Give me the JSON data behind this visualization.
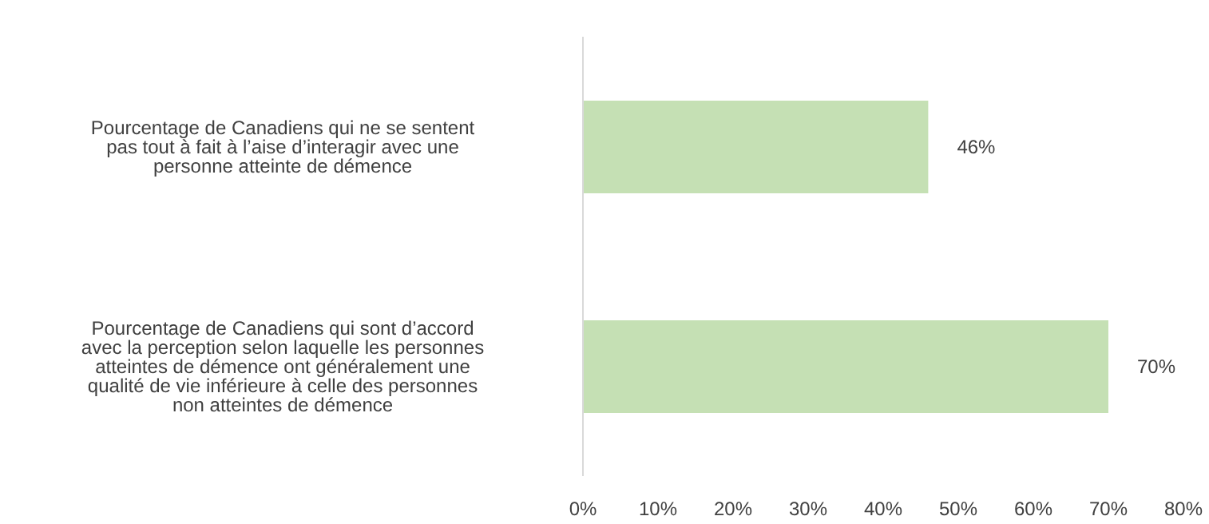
{
  "chart_data": {
    "type": "bar",
    "orientation": "horizontal",
    "categories": [
      "Pourcentage de Canadiens qui ne se sentent pas tout à fait à l’aise d’interagir avec une personne atteinte de démence",
      "Pourcentage de Canadiens qui sont d’accord avec la perception selon laquelle les personnes atteintes de démence ont généralement une qualité de vie inférieure à celle des personnes non atteintes de démence"
    ],
    "values": [
      46,
      70
    ],
    "color": "#c5e0b4",
    "value_labels": [
      "46%",
      "70%"
    ],
    "xlim": [
      0,
      80
    ],
    "xticks": [
      {
        "value": 0,
        "label": "0%"
      },
      {
        "value": 10,
        "label": "10%"
      },
      {
        "value": 20,
        "label": "20%"
      },
      {
        "value": 30,
        "label": "30%"
      },
      {
        "value": 40,
        "label": "40%"
      },
      {
        "value": 50,
        "label": "50%"
      },
      {
        "value": 60,
        "label": "60%"
      },
      {
        "value": 70,
        "label": "70%"
      },
      {
        "value": 80,
        "label": "80%"
      }
    ],
    "grid": false,
    "legend": false
  }
}
